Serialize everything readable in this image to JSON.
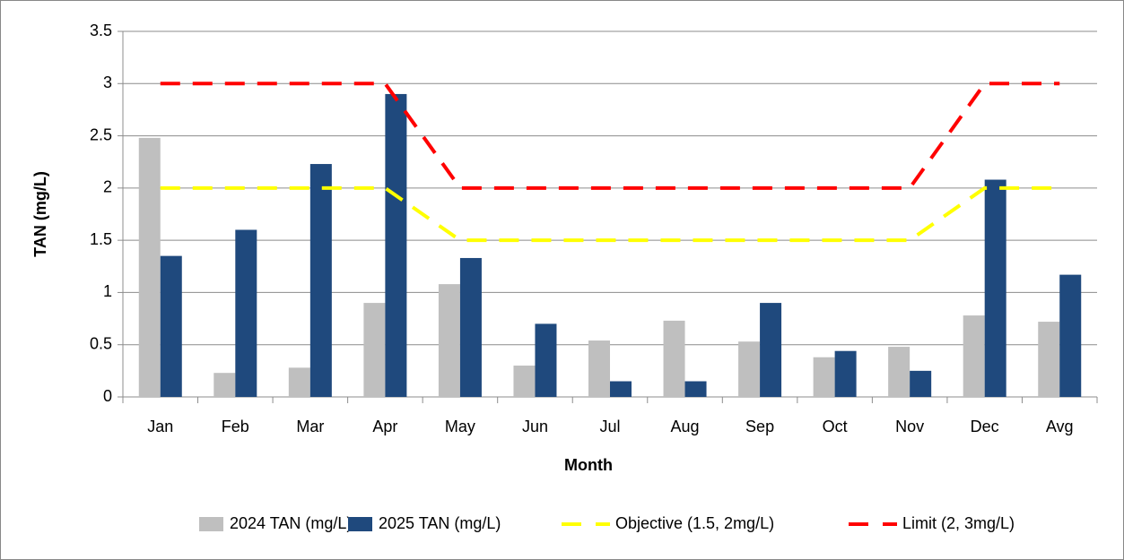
{
  "chart_data": {
    "type": "bar",
    "x_label": "Month",
    "y_label": "TAN (mg/L)",
    "categories": [
      "Jan",
      "Feb",
      "Mar",
      "Apr",
      "May",
      "Jun",
      "Jul",
      "Aug",
      "Sep",
      "Oct",
      "Nov",
      "Dec",
      "Avg"
    ],
    "series": [
      {
        "name": "2024 TAN (mg/L)",
        "type": "bar",
        "color": "#bfbfbf",
        "values": [
          2.48,
          0.23,
          0.28,
          0.9,
          1.08,
          0.3,
          0.54,
          0.73,
          0.53,
          0.38,
          0.48,
          0.78,
          0.72
        ]
      },
      {
        "name": "2025 TAN (mg/L)",
        "type": "bar",
        "color": "#1f497d",
        "values": [
          1.35,
          1.6,
          2.23,
          2.9,
          1.33,
          0.7,
          0.15,
          0.15,
          0.9,
          0.44,
          0.25,
          2.08,
          1.17
        ]
      },
      {
        "name": "Objective (1.5, 2mg/L)",
        "type": "line",
        "color": "#ffff00",
        "values": [
          2,
          2,
          2,
          2,
          1.5,
          1.5,
          1.5,
          1.5,
          1.5,
          1.5,
          1.5,
          2,
          2
        ]
      },
      {
        "name": "Limit (2, 3mg/L)",
        "type": "line",
        "color": "#ff0000",
        "values": [
          3,
          3,
          3,
          3,
          2,
          2,
          2,
          2,
          2,
          2,
          2,
          3,
          3
        ]
      }
    ],
    "ylim": [
      0,
      3.5
    ],
    "yticks": [
      0,
      0.5,
      1,
      1.5,
      2,
      2.5,
      3,
      3.5
    ],
    "grid": true,
    "legend": "bottom"
  }
}
